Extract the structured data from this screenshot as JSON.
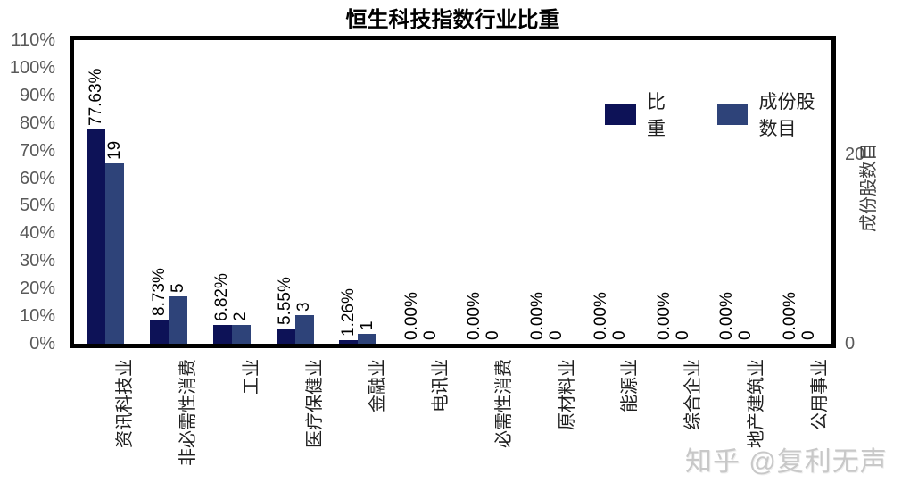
{
  "title": "恒生科技指数行业比重",
  "watermark": "知乎 @复利无声",
  "chart_data": {
    "type": "bar",
    "title": "恒生科技指数行业比重",
    "grid": false,
    "legend_position": "top-right-inside",
    "categories": [
      "资讯科技业",
      "非必需性消费",
      "工业",
      "医疗保健业",
      "金融业",
      "电讯业",
      "必需性消费",
      "原材料业",
      "能源业",
      "综合企业",
      "地产建筑业",
      "公用事业"
    ],
    "series": [
      {
        "name": "比重",
        "axis": "left",
        "unit": "%",
        "color": "#0d1257",
        "values": [
          77.63,
          8.73,
          6.82,
          5.55,
          1.26,
          0,
          0,
          0,
          0,
          0,
          0,
          0
        ],
        "labels": [
          "77.63%",
          "8.73%",
          "6.82%",
          "5.55%",
          "1.26%",
          "0.00%",
          "0.00%",
          "0.00%",
          "0.00%",
          "0.00%",
          "0.00%",
          "0.00%"
        ]
      },
      {
        "name": "成份股数目",
        "axis": "right",
        "unit": "stocks",
        "color": "#2e4379",
        "values": [
          19,
          5,
          2,
          3,
          1,
          0,
          0,
          0,
          0,
          0,
          0,
          0
        ],
        "labels": [
          "19",
          "5",
          "2",
          "3",
          "1",
          "0",
          "0",
          "0",
          "0",
          "0",
          "0",
          "0"
        ]
      }
    ],
    "left_axis": {
      "max": 110,
      "min": 0,
      "tick_step": 10,
      "ticks": [
        "110%",
        "100%",
        "90%",
        "80%",
        "70%",
        "60%",
        "50%",
        "40%",
        "30%",
        "20%",
        "10%",
        "0%"
      ]
    },
    "right_axis": {
      "max": 32,
      "min": 0,
      "title": "成份股数目",
      "ticks": [
        {
          "label": "20",
          "value": 20
        },
        {
          "label": "0",
          "value": 0
        }
      ]
    }
  }
}
